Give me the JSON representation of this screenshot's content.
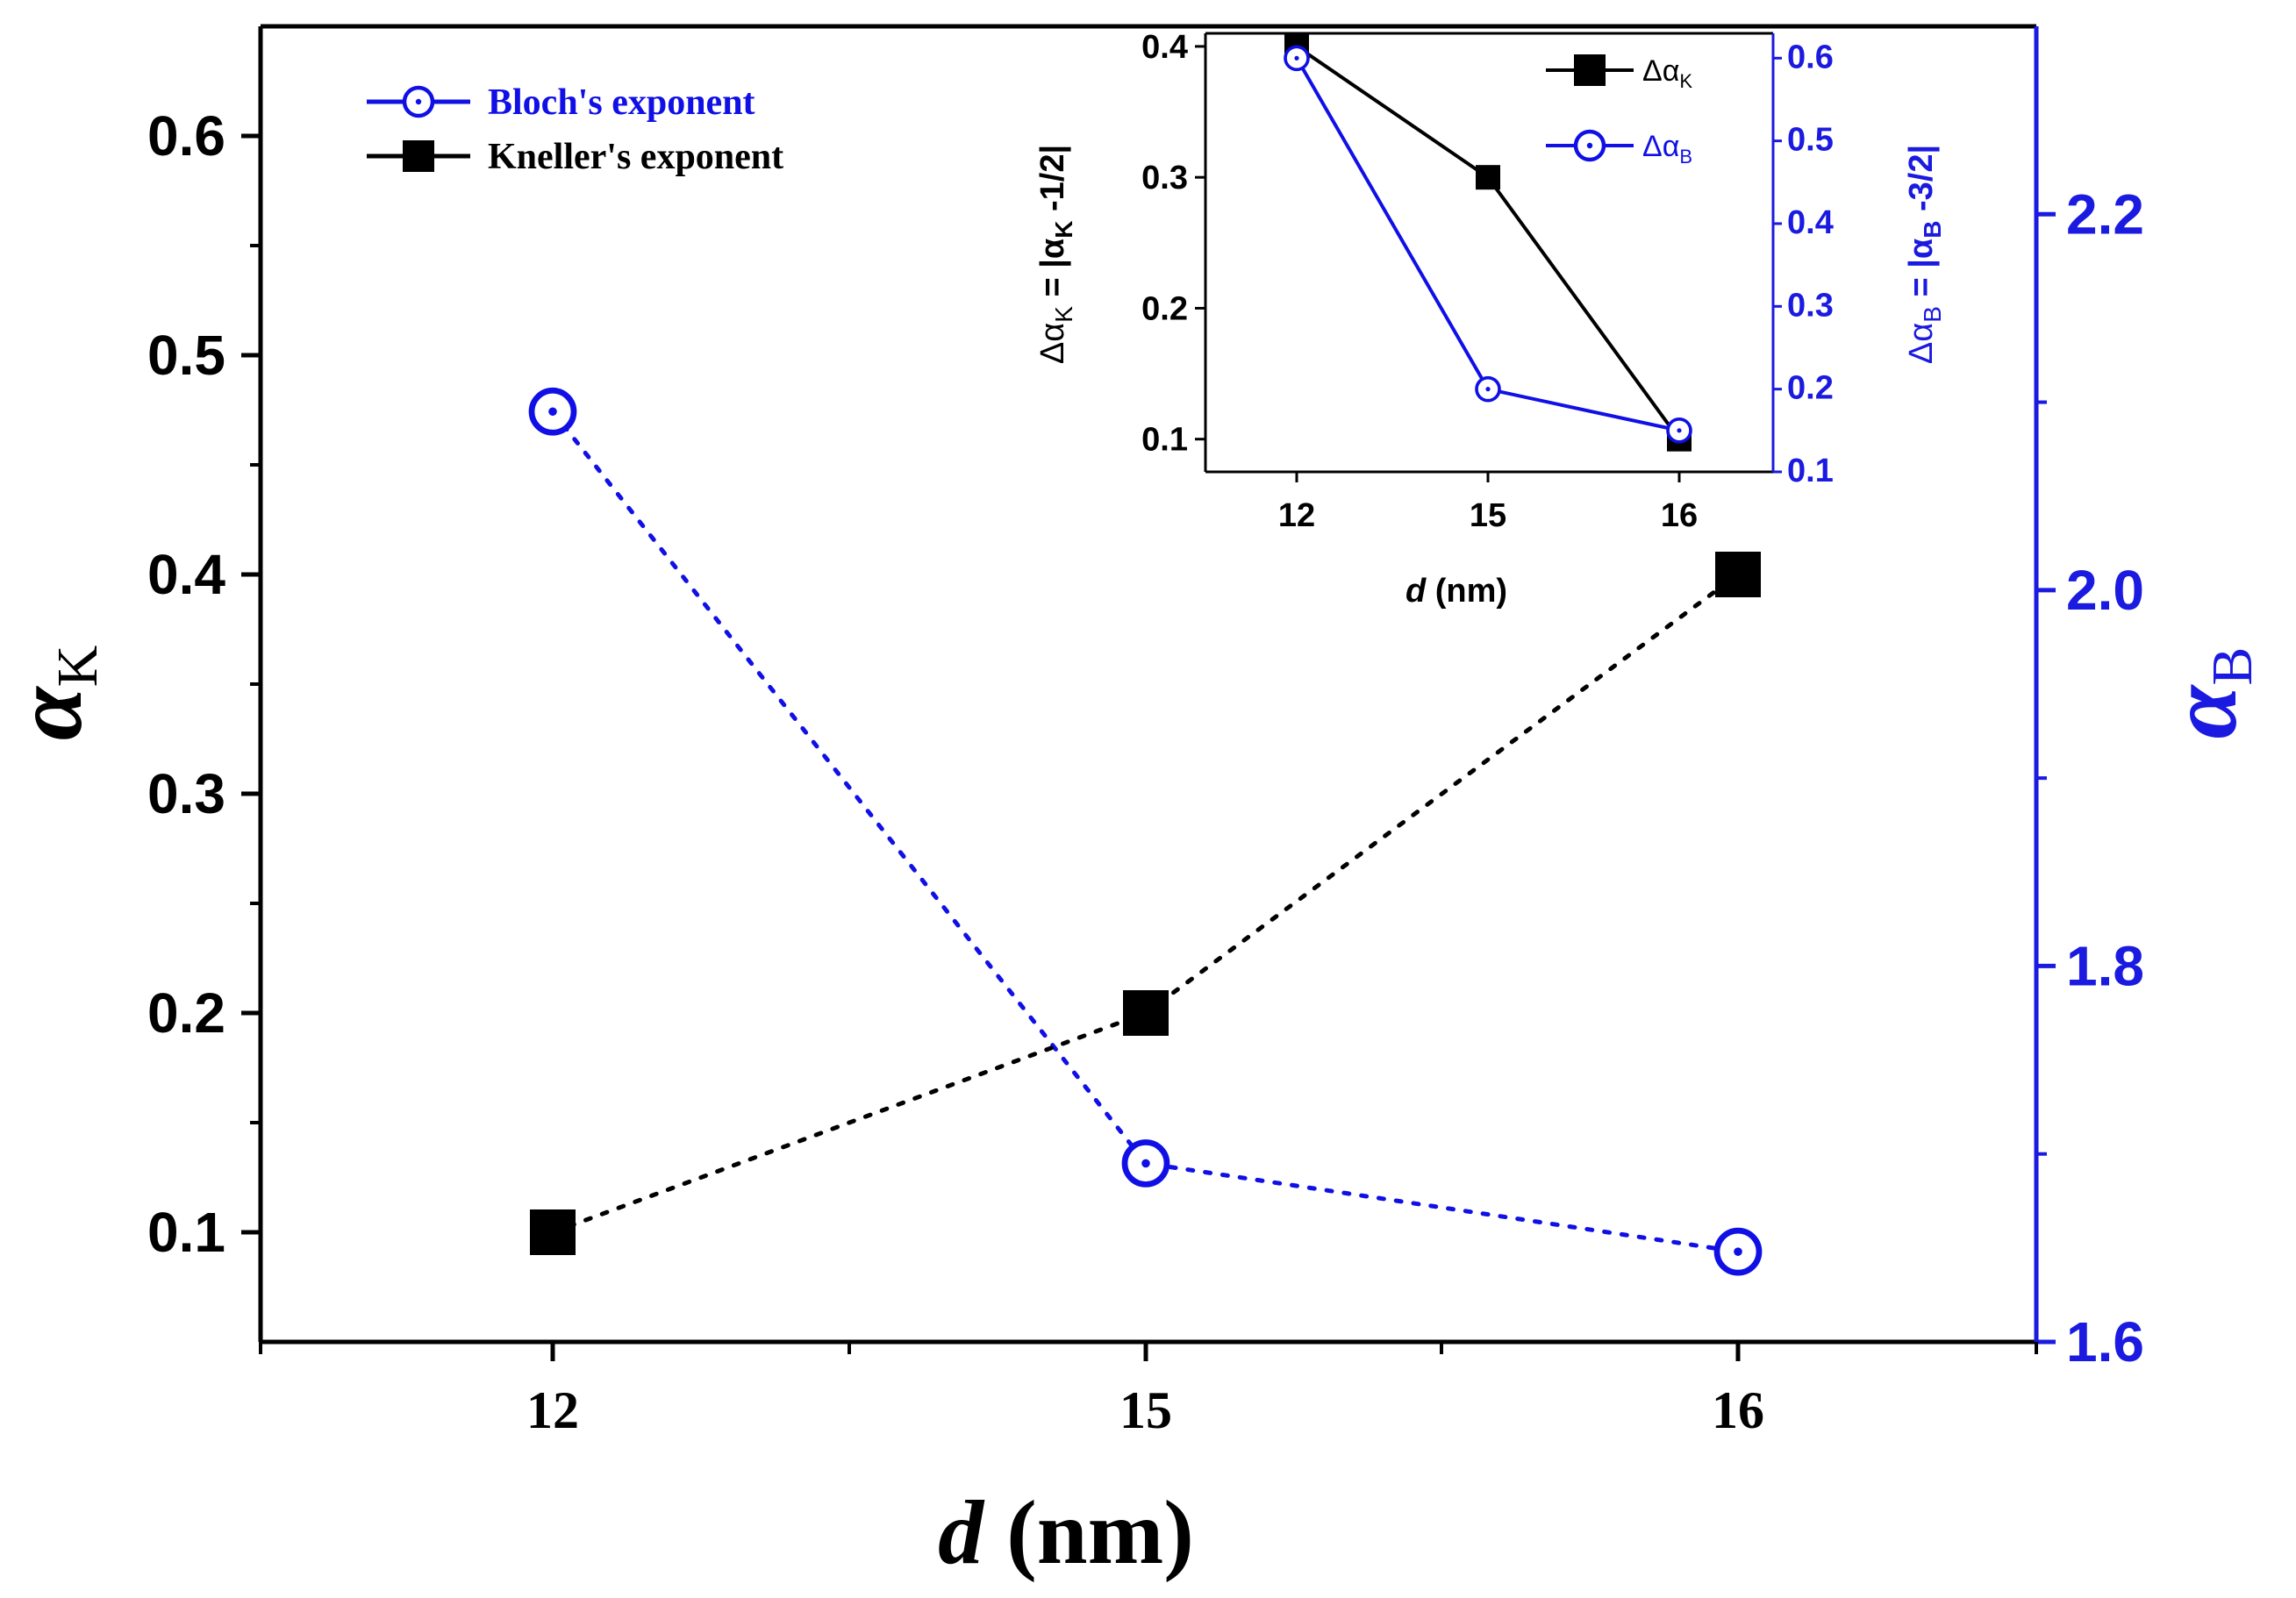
{
  "colors": {
    "kneller": "#000000",
    "bloch": "#1010e6",
    "right_axis": "#1a1ae0"
  },
  "chart_data": [
    {
      "id": "main",
      "type": "scatter",
      "categories": [
        "12",
        "15",
        "16"
      ],
      "xlabel": {
        "var": "d",
        "unit": " (nm)"
      },
      "y_left": {
        "label_base": "α",
        "label_sub": "K",
        "ylim": [
          0.05,
          0.65
        ],
        "ticks": [
          0.1,
          0.2,
          0.3,
          0.4,
          0.5,
          0.6
        ],
        "tick_labels": [
          "0.1",
          "0.2",
          "0.3",
          "0.4",
          "0.5",
          "0.6"
        ]
      },
      "y_right": {
        "label_base": "α",
        "label_sub": "B",
        "ylim": [
          1.6,
          2.3
        ],
        "ticks": [
          1.6,
          1.8,
          2.0,
          2.2
        ],
        "tick_labels": [
          "1.6",
          "1.8",
          "2.0",
          "2.2"
        ]
      },
      "series": [
        {
          "name": "Bloch's exponent",
          "axis": "right",
          "marker": "circle-dot",
          "line": "dotted",
          "values": [
            2.095,
            1.695,
            1.648
          ]
        },
        {
          "name": "Kneller's exponent",
          "axis": "left",
          "marker": "square",
          "line": "dotted",
          "values": [
            0.1,
            0.2,
            0.4
          ]
        }
      ],
      "legend_position": "top-left"
    },
    {
      "id": "inset",
      "type": "line",
      "categories": [
        "12",
        "15",
        "16"
      ],
      "xlabel": {
        "var": "d",
        "unit": " (nm)"
      },
      "y_left": {
        "label": "Δα_K = |α_K -1/2|",
        "label_parts": [
          "Δα",
          "K",
          " = |α",
          "K",
          " -1/2|"
        ],
        "ylim": [
          0.075,
          0.41
        ],
        "ticks": [
          0.1,
          0.2,
          0.3,
          0.4
        ],
        "tick_labels": [
          "0.1",
          "0.2",
          "0.3",
          "0.4"
        ]
      },
      "y_right": {
        "label": "Δα_B = |α_B -3/2|",
        "label_parts": [
          "Δα",
          "B",
          " = |α",
          "B",
          " -3/2|"
        ],
        "ylim": [
          0.1,
          0.63
        ],
        "ticks": [
          0.1,
          0.2,
          0.3,
          0.4,
          0.5,
          0.6
        ],
        "tick_labels": [
          "0.1",
          "0.2",
          "0.3",
          "0.4",
          "0.5",
          "0.6"
        ]
      },
      "series": [
        {
          "name": "Δα_K",
          "name_base": "Δα",
          "name_sub": "K",
          "axis": "left",
          "marker": "square",
          "line": "solid",
          "values": [
            0.4,
            0.3,
            0.1
          ]
        },
        {
          "name": "Δα_B",
          "name_base": "Δα",
          "name_sub": "B",
          "axis": "right",
          "marker": "circle-dot",
          "line": "solid",
          "values": [
            0.6,
            0.2,
            0.15
          ]
        }
      ],
      "legend_position": "top-right"
    }
  ]
}
